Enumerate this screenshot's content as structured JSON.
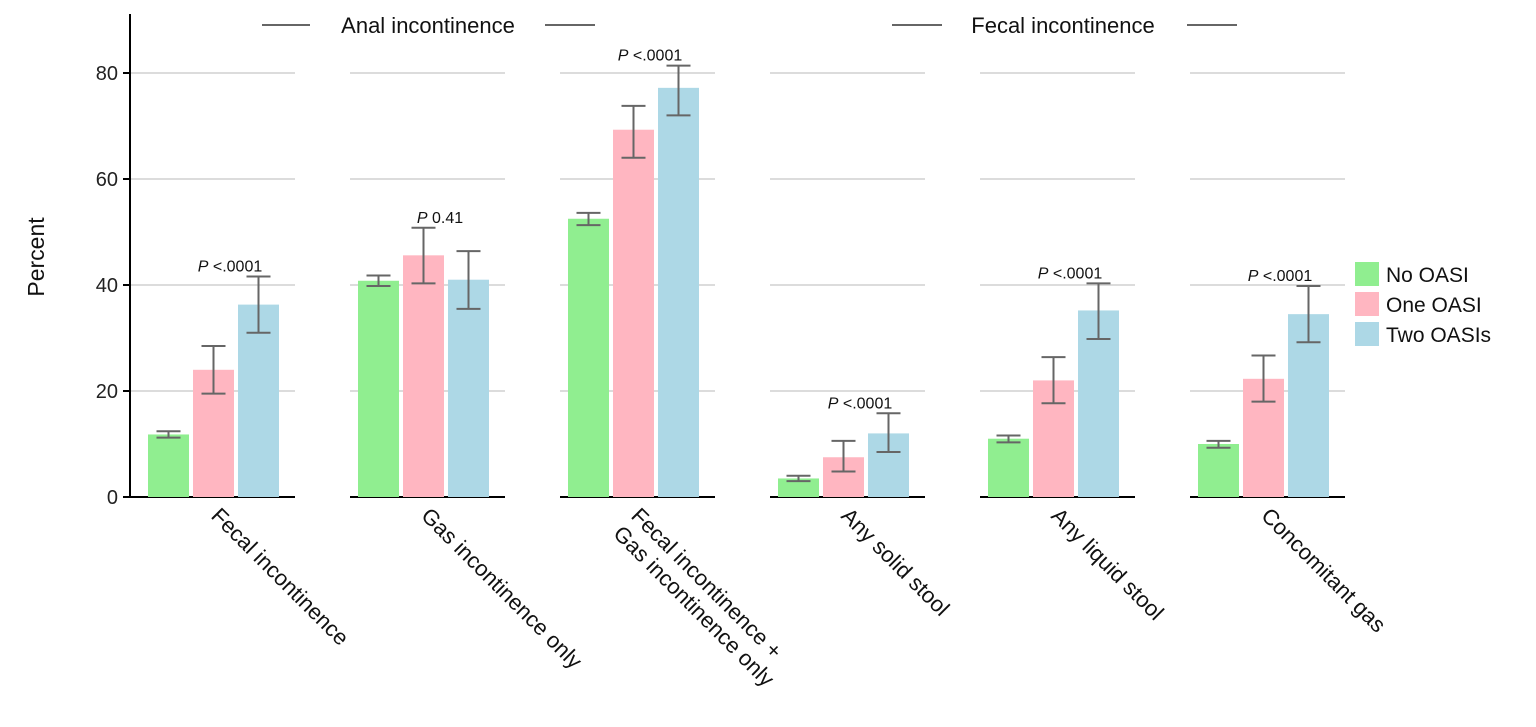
{
  "chart_data": {
    "type": "bar",
    "ylabel": "Percent",
    "ylim": [
      0,
      90
    ],
    "yticks": [
      "0",
      "20",
      "40",
      "60",
      "80"
    ],
    "grid": true,
    "legend_position": "right",
    "groups": [
      {
        "label": "Anal incontinence",
        "categories": [
          0,
          1,
          2
        ]
      },
      {
        "label": "Fecal incontinence",
        "categories": [
          3,
          4,
          5
        ]
      }
    ],
    "categories": [
      [
        "Fecal incontinence"
      ],
      [
        "Gas incontinence only"
      ],
      [
        "Fecal incontinence +",
        "Gas incontinence only"
      ],
      [
        "Any solid stool"
      ],
      [
        "Any liquid stool"
      ],
      [
        "Concomitant gas"
      ]
    ],
    "series": [
      {
        "name": "No OASI",
        "color": "#90ee90",
        "values": [
          11.8,
          40.8,
          52.5,
          3.5,
          11.0,
          10.0
        ],
        "err_low": [
          11.2,
          39.8,
          51.3,
          3.0,
          10.3,
          9.3
        ],
        "err_high": [
          12.4,
          41.8,
          53.6,
          4.0,
          11.6,
          10.6
        ]
      },
      {
        "name": "One OASI",
        "color": "#ffb6c1",
        "values": [
          24.0,
          45.6,
          69.3,
          7.5,
          22.0,
          22.3
        ],
        "err_low": [
          19.5,
          40.3,
          64.0,
          4.8,
          17.7,
          18.0
        ],
        "err_high": [
          28.5,
          50.8,
          73.8,
          10.6,
          26.4,
          26.7
        ]
      },
      {
        "name": "Two OASIs",
        "color": "#add8e6",
        "values": [
          36.3,
          41.0,
          77.2,
          12.0,
          35.2,
          34.5
        ],
        "err_low": [
          31.0,
          35.5,
          72.0,
          8.5,
          29.8,
          29.2
        ],
        "err_high": [
          41.6,
          46.4,
          81.4,
          15.8,
          40.3,
          39.8
        ]
      }
    ],
    "pvalues": [
      {
        "italic": "P",
        "text": " <.0001"
      },
      {
        "italic": "P",
        "text": "  0.41"
      },
      {
        "italic": "P",
        "text": " <.0001"
      },
      {
        "italic": "P",
        "text": " <.0001"
      },
      {
        "italic": "P",
        "text": " <.0001"
      },
      {
        "italic": "P",
        "text": " <.0001"
      }
    ],
    "colors": {
      "grid": "#dcdcdc",
      "axis": "#000000",
      "errorbar": "#666666"
    }
  }
}
